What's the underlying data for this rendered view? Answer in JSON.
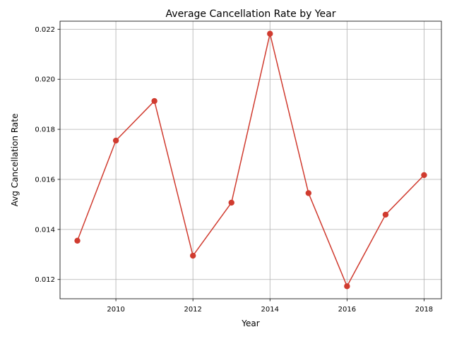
{
  "chart_data": {
    "type": "line",
    "title": "Average Cancellation Rate by Year",
    "xlabel": "Year",
    "ylabel": "Avg Cancellation Rate",
    "x": [
      2009,
      2010,
      2011,
      2012,
      2013,
      2014,
      2015,
      2016,
      2017,
      2018
    ],
    "series": [
      {
        "name": "Avg Cancellation Rate",
        "values": [
          0.01355,
          0.01755,
          0.01913,
          0.01295,
          0.01507,
          0.02182,
          0.01545,
          0.01173,
          0.01459,
          0.01617
        ]
      }
    ],
    "xlim": [
      2008.55,
      2018.45
    ],
    "ylim": [
      0.01123,
      0.02232
    ],
    "xticks": [
      2010,
      2012,
      2014,
      2016,
      2018
    ],
    "xtick_labels": [
      "2010",
      "2012",
      "2014",
      "2016",
      "2018"
    ],
    "yticks": [
      0.012,
      0.014,
      0.016,
      0.018,
      0.02,
      0.022
    ],
    "ytick_labels": [
      "0.012",
      "0.014",
      "0.016",
      "0.018",
      "0.020",
      "0.022"
    ],
    "grid": true,
    "legend": "none",
    "line_color": "#d03b2f"
  }
}
